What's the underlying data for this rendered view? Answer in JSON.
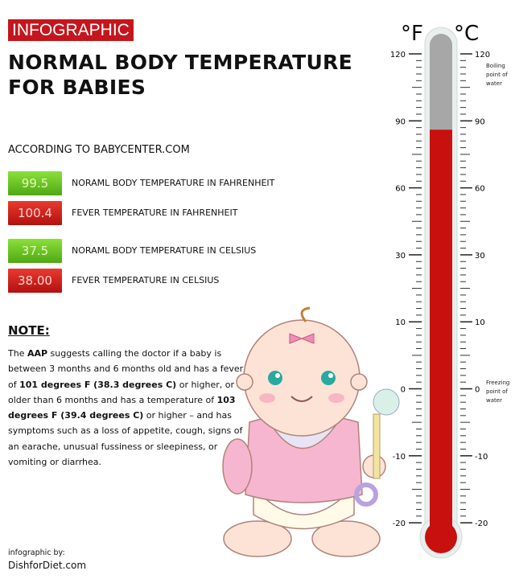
{
  "header": {
    "tag": "INFOGRAPHIC",
    "title_line1": "NORMAL BODY TEMPERATURE",
    "title_line2": "FOR BABIES"
  },
  "source": "ACCORDING TO BABYCENTER.COM",
  "readings": [
    {
      "value": "99.5",
      "label": "NORAML BODY TEMPERATURE IN FAHRENHEIT",
      "color": "#5fbf1f"
    },
    {
      "value": "100.4",
      "label": "FEVER TEMPERATURE IN FAHRENHEIT",
      "color": "#d21d1a"
    },
    {
      "value": "37.5",
      "label": "NORAML BODY TEMPERATURE IN CELSIUS",
      "color": "#5fbf1f"
    },
    {
      "value": "38.00",
      "label": "FEVER TEMPERATURE IN CELSIUS",
      "color": "#d21d1a"
    }
  ],
  "note": {
    "heading": "NOTE:",
    "p1": "The ",
    "b1": "AAP",
    "p2": " suggests calling the doctor if a baby is between 3 months and 6 months old and has a fever of ",
    "b2": "101 degrees F (38.3 degrees C)",
    "p3": " or higher, or is older than 6 months and has a temperature of ",
    "b3": "103 degrees F (39.4 degrees C)",
    "p4": " or higher – and has symptoms such as a loss of appetite, cough, signs of an earache, unusual fussiness or sleepiness, or vomiting or diarrhea."
  },
  "credit": {
    "line1": "infographic by:",
    "line2": "DishforDiet.com"
  },
  "thermometer": {
    "unit_left": "°F",
    "unit_right": "°C",
    "scale_labels": [
      "120",
      "90",
      "60",
      "30",
      "10",
      "0",
      "-10",
      "-20"
    ],
    "boiling_note": [
      "Boiling",
      "point of",
      "water"
    ],
    "freezing_note": [
      "Freezing",
      "point of",
      "water"
    ],
    "mercury_level_percent": 81,
    "mercury_color": "#c8110f"
  }
}
